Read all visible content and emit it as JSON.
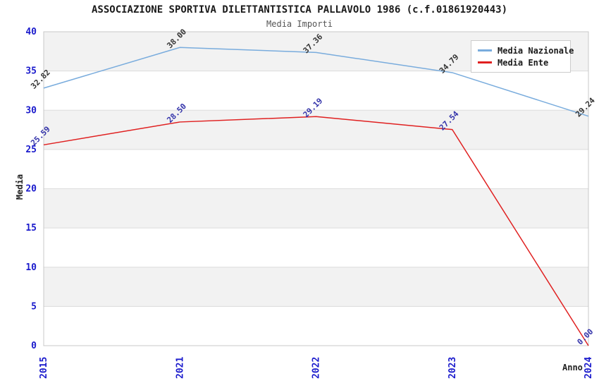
{
  "header": {
    "title": "ASSOCIAZIONE SPORTIVA DILETTANTISTICA PALLAVOLO 1986 (c.f.01861920443)",
    "subtitle": "Media Importi"
  },
  "legend": {
    "items": [
      {
        "label": "Media Nazionale",
        "color": "#79ACDD"
      },
      {
        "label": "Media Ente",
        "color": "#E02020"
      }
    ]
  },
  "chart_data": {
    "type": "line",
    "title": "ASSOCIAZIONE SPORTIVA DILETTANTISTICA PALLAVOLO 1986 (c.f.01861920443)",
    "subtitle": "Media Importi",
    "xlabel": "Anno",
    "ylabel": "Media",
    "categories": [
      "2015",
      "2021",
      "2022",
      "2023",
      "2024"
    ],
    "series": [
      {
        "name": "Media Nazionale",
        "color": "#79ACDD",
        "label_color": "#333333",
        "values": [
          32.82,
          38.0,
          37.36,
          34.79,
          29.24
        ]
      },
      {
        "name": "Media Ente",
        "color": "#E02020",
        "label_color": "#3333AA",
        "values": [
          25.59,
          28.5,
          29.19,
          27.54,
          0.0
        ]
      }
    ],
    "ylim": [
      0,
      40
    ],
    "ytick_step": 5,
    "yticks": [
      0,
      5,
      10,
      15,
      20,
      25,
      30,
      35,
      40
    ],
    "tick_color": "#1A1ACC",
    "band_colors": [
      "#ffffff",
      "#f2f2f2"
    ],
    "plot_border_color": "#c8c8c8",
    "grid": "horizontal-bands",
    "legend_position": "top-right",
    "value_label_format": "0.00",
    "value_label_rotation": -45
  }
}
